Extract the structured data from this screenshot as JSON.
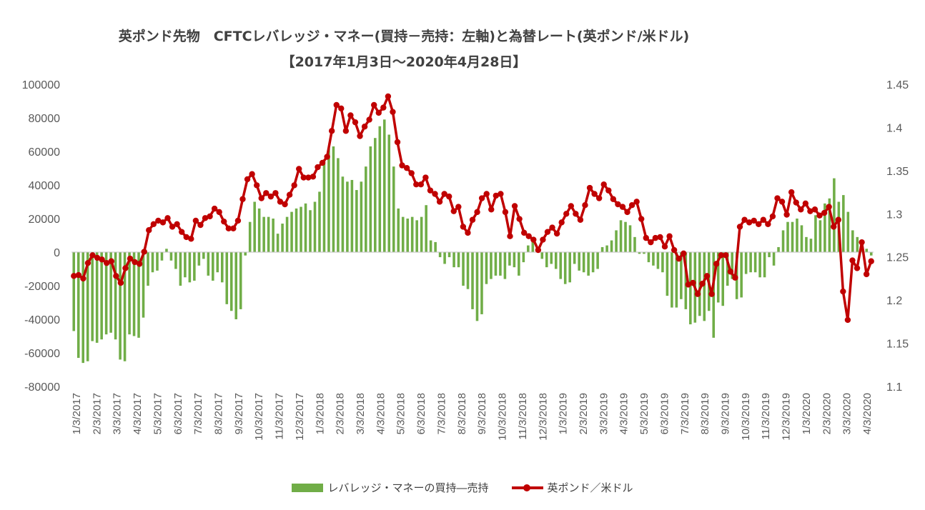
{
  "chart_data": {
    "type": "bar+line",
    "title": "英ポンド先物　CFTCレバレッジ・マネー(買持－売持：左軸)と為替レート(英ポンド/米ドル)",
    "subtitle": "【2017年1月3日～2020年4月28日】",
    "y_left": {
      "min": -80000,
      "max": 100000,
      "ticks": [
        "100000",
        "80000",
        "60000",
        "40000",
        "20000",
        "0",
        "-20000",
        "-40000",
        "-60000",
        "-80000"
      ]
    },
    "y_right": {
      "min": 1.1,
      "max": 1.45,
      "ticks": [
        "1.45",
        "1.4",
        "1.35",
        "1.3",
        "1.25",
        "1.2",
        "1.15",
        "1.1"
      ]
    },
    "x_ticks": [
      "1/3/2017",
      "2/3/2017",
      "3/3/2017",
      "4/3/2017",
      "5/3/2017",
      "6/3/2017",
      "7/3/2017",
      "8/3/2017",
      "9/3/2017",
      "10/3/2017",
      "11/3/2017",
      "12/3/2017",
      "1/3/2018",
      "2/3/2018",
      "3/3/2018",
      "4/3/2018",
      "5/3/2018",
      "6/3/2018",
      "7/3/2018",
      "8/3/2018",
      "9/3/2018",
      "10/3/2018",
      "11/3/2018",
      "12/3/2018",
      "1/3/2019",
      "2/3/2019",
      "3/3/2019",
      "4/3/2019",
      "5/3/2019",
      "6/3/2019",
      "7/3/2019",
      "8/3/2019",
      "9/3/2019",
      "10/3/2019",
      "11/3/2019",
      "12/3/2019",
      "1/3/2020",
      "2/3/2020",
      "3/3/2020",
      "4/3/2020"
    ],
    "series": [
      {
        "name": "レバレッジ・マネーの買持―売持",
        "type": "bar",
        "color": "#70ad47",
        "values": [
          -47000,
          -63000,
          -66000,
          -65000,
          -53000,
          -54000,
          -52000,
          -49000,
          -48000,
          -52000,
          -64000,
          -65000,
          -49000,
          -50000,
          -51000,
          -39000,
          -20000,
          -12000,
          -11000,
          -5000,
          2000,
          -5000,
          -10000,
          -20000,
          -15000,
          -18000,
          -17000,
          -8000,
          -4000,
          -14000,
          -17000,
          -12000,
          -18000,
          -31000,
          -35000,
          -40000,
          -34000,
          -2000,
          18000,
          30000,
          26000,
          21000,
          21000,
          20000,
          11000,
          17000,
          21000,
          24000,
          26000,
          27000,
          29000,
          25000,
          30000,
          36000,
          55000,
          62000,
          63000,
          56000,
          45000,
          42000,
          43000,
          37000,
          42000,
          51000,
          63000,
          68000,
          75000,
          79000,
          70000,
          51000,
          26000,
          21000,
          20000,
          21000,
          19000,
          21000,
          28000,
          7000,
          6000,
          -3000,
          -7000,
          -3000,
          -9000,
          -9000,
          -20000,
          -22000,
          -34000,
          -41000,
          -37000,
          -19000,
          -16000,
          -14000,
          -14000,
          -16000,
          -8000,
          -9000,
          -14000,
          -6000,
          4000,
          7000,
          3000,
          -4000,
          -9000,
          -7000,
          -10000,
          -16000,
          -19000,
          -18000,
          -7000,
          -11000,
          -12000,
          -14000,
          -12000,
          -10000,
          3000,
          4000,
          7000,
          13000,
          19000,
          18000,
          16000,
          9000,
          -1000,
          -1000,
          -6000,
          -8000,
          -10000,
          -12000,
          -26000,
          -33000,
          -33000,
          -28000,
          -34000,
          -43000,
          -42000,
          -38000,
          -41000,
          -35000,
          -51000,
          -30000,
          -32000,
          -20000,
          -16000,
          -28000,
          -27000,
          -13000,
          -12000,
          -12000,
          -15000,
          -15000,
          -3000,
          -8000,
          3000,
          13000,
          18000,
          18000,
          20000,
          16000,
          9000,
          8000,
          22000,
          19000,
          29000,
          32000,
          44000,
          30000,
          34000,
          24000,
          13000,
          9000,
          7000,
          2000,
          -2000
        ]
      },
      {
        "name": "英ポンド／米ドル",
        "type": "line",
        "color": "#c00000",
        "values": [
          1.228,
          1.229,
          1.225,
          1.243,
          1.252,
          1.249,
          1.247,
          1.243,
          1.245,
          1.228,
          1.22,
          1.237,
          1.248,
          1.244,
          1.242,
          1.256,
          1.281,
          1.288,
          1.292,
          1.29,
          1.295,
          1.285,
          1.288,
          1.279,
          1.273,
          1.271,
          1.292,
          1.287,
          1.295,
          1.297,
          1.306,
          1.302,
          1.291,
          1.283,
          1.283,
          1.292,
          1.317,
          1.34,
          1.346,
          1.333,
          1.318,
          1.324,
          1.32,
          1.324,
          1.314,
          1.311,
          1.322,
          1.333,
          1.352,
          1.342,
          1.342,
          1.343,
          1.354,
          1.359,
          1.366,
          1.396,
          1.426,
          1.422,
          1.396,
          1.414,
          1.406,
          1.39,
          1.401,
          1.409,
          1.426,
          1.417,
          1.423,
          1.436,
          1.418,
          1.383,
          1.356,
          1.353,
          1.347,
          1.334,
          1.334,
          1.342,
          1.327,
          1.323,
          1.314,
          1.323,
          1.32,
          1.303,
          1.308,
          1.285,
          1.278,
          1.293,
          1.302,
          1.318,
          1.323,
          1.305,
          1.321,
          1.323,
          1.302,
          1.274,
          1.309,
          1.294,
          1.278,
          1.274,
          1.27,
          1.258,
          1.27,
          1.279,
          1.284,
          1.277,
          1.29,
          1.3,
          1.309,
          1.3,
          1.293,
          1.31,
          1.33,
          1.323,
          1.318,
          1.334,
          1.327,
          1.317,
          1.311,
          1.308,
          1.302,
          1.31,
          1.314,
          1.294,
          1.272,
          1.267,
          1.272,
          1.273,
          1.262,
          1.274,
          1.258,
          1.248,
          1.254,
          1.218,
          1.22,
          1.207,
          1.219,
          1.228,
          1.207,
          1.242,
          1.252,
          1.252,
          1.233,
          1.226,
          1.285,
          1.293,
          1.29,
          1.292,
          1.288,
          1.293,
          1.288,
          1.297,
          1.318,
          1.314,
          1.299,
          1.325,
          1.313,
          1.305,
          1.312,
          1.303,
          1.305,
          1.298,
          1.301,
          1.308,
          1.285,
          1.293,
          1.21,
          1.177,
          1.246,
          1.237,
          1.267,
          1.23,
          1.245
        ]
      }
    ]
  },
  "legend": {
    "bar_label": "レバレッジ・マネーの買持―売持",
    "line_label": "英ポンド／米ドル"
  }
}
